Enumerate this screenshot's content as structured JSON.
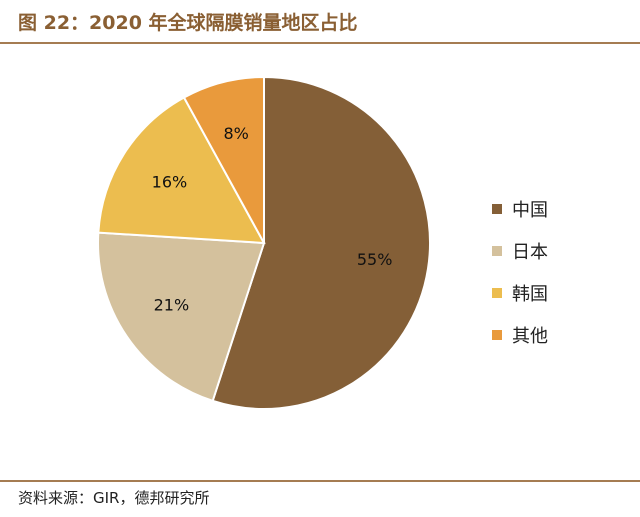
{
  "header": {
    "title": "图 22：2020 年全球隔膜销量地区占比"
  },
  "footer": {
    "source": "资料来源：GIR，德邦研究所"
  },
  "chart_data": {
    "type": "pie",
    "categories": [
      "中国",
      "日本",
      "韩国",
      "其他"
    ],
    "values": [
      55,
      21,
      16,
      8
    ],
    "labels": [
      "55%",
      "21%",
      "16%",
      "8%"
    ],
    "colors": [
      "#845f37",
      "#d4c19d",
      "#ecbd4f",
      "#e99a3c"
    ],
    "title": "",
    "legend_position": "right",
    "start": "12 o'clock",
    "direction": "clockwise"
  }
}
